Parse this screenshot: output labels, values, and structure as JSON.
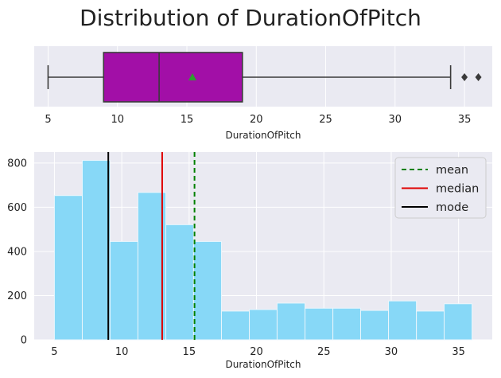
{
  "figure": {
    "title": "Distribution of DurationOfPitch"
  },
  "chart_data": [
    {
      "type": "boxplot",
      "xlabel": "DurationOfPitch",
      "xlim": [
        4,
        37
      ],
      "xticks": [
        5,
        10,
        15,
        20,
        25,
        30,
        35
      ],
      "min_whisker": 5,
      "q1": 9,
      "median": 13,
      "q3": 19,
      "max_whisker": 34,
      "mean": 15.4,
      "outliers": [
        35,
        36
      ],
      "box_color": "#a20fa7",
      "mean_marker_color": "#2ca02c",
      "grid": true
    },
    {
      "type": "histogram",
      "xlabel": "DurationOfPitch",
      "xlim": [
        3.5,
        37.5
      ],
      "ylim": [
        0,
        850
      ],
      "xticks": [
        5,
        10,
        15,
        20,
        25,
        30,
        35
      ],
      "yticks": [
        0,
        200,
        400,
        600,
        800
      ],
      "bins": [
        {
          "x0": 5.0,
          "x1": 7.07,
          "count": 653
        },
        {
          "x0": 7.07,
          "x1": 9.13,
          "count": 812
        },
        {
          "x0": 9.13,
          "x1": 11.2,
          "count": 445
        },
        {
          "x0": 11.2,
          "x1": 13.27,
          "count": 667
        },
        {
          "x0": 13.27,
          "x1": 15.33,
          "count": 521
        },
        {
          "x0": 15.33,
          "x1": 17.4,
          "count": 445
        },
        {
          "x0": 17.4,
          "x1": 19.47,
          "count": 130
        },
        {
          "x0": 19.47,
          "x1": 21.53,
          "count": 137
        },
        {
          "x0": 21.53,
          "x1": 23.6,
          "count": 166
        },
        {
          "x0": 23.6,
          "x1": 25.67,
          "count": 143
        },
        {
          "x0": 25.67,
          "x1": 27.73,
          "count": 143
        },
        {
          "x0": 27.73,
          "x1": 29.8,
          "count": 133
        },
        {
          "x0": 29.8,
          "x1": 31.87,
          "count": 176
        },
        {
          "x0": 31.87,
          "x1": 33.93,
          "count": 130
        },
        {
          "x0": 33.93,
          "x1": 36.0,
          "count": 163
        }
      ],
      "bar_color": "#87d8f7",
      "lines": [
        {
          "name": "mean",
          "x": 15.4,
          "color": "#008000",
          "style": "dashed"
        },
        {
          "name": "median",
          "x": 13,
          "color": "#e00000",
          "style": "solid"
        },
        {
          "name": "mode",
          "x": 9,
          "color": "#000000",
          "style": "solid"
        }
      ],
      "legend": {
        "position": "top-right",
        "entries": [
          "mean",
          "median",
          "mode"
        ]
      },
      "grid": true
    }
  ]
}
